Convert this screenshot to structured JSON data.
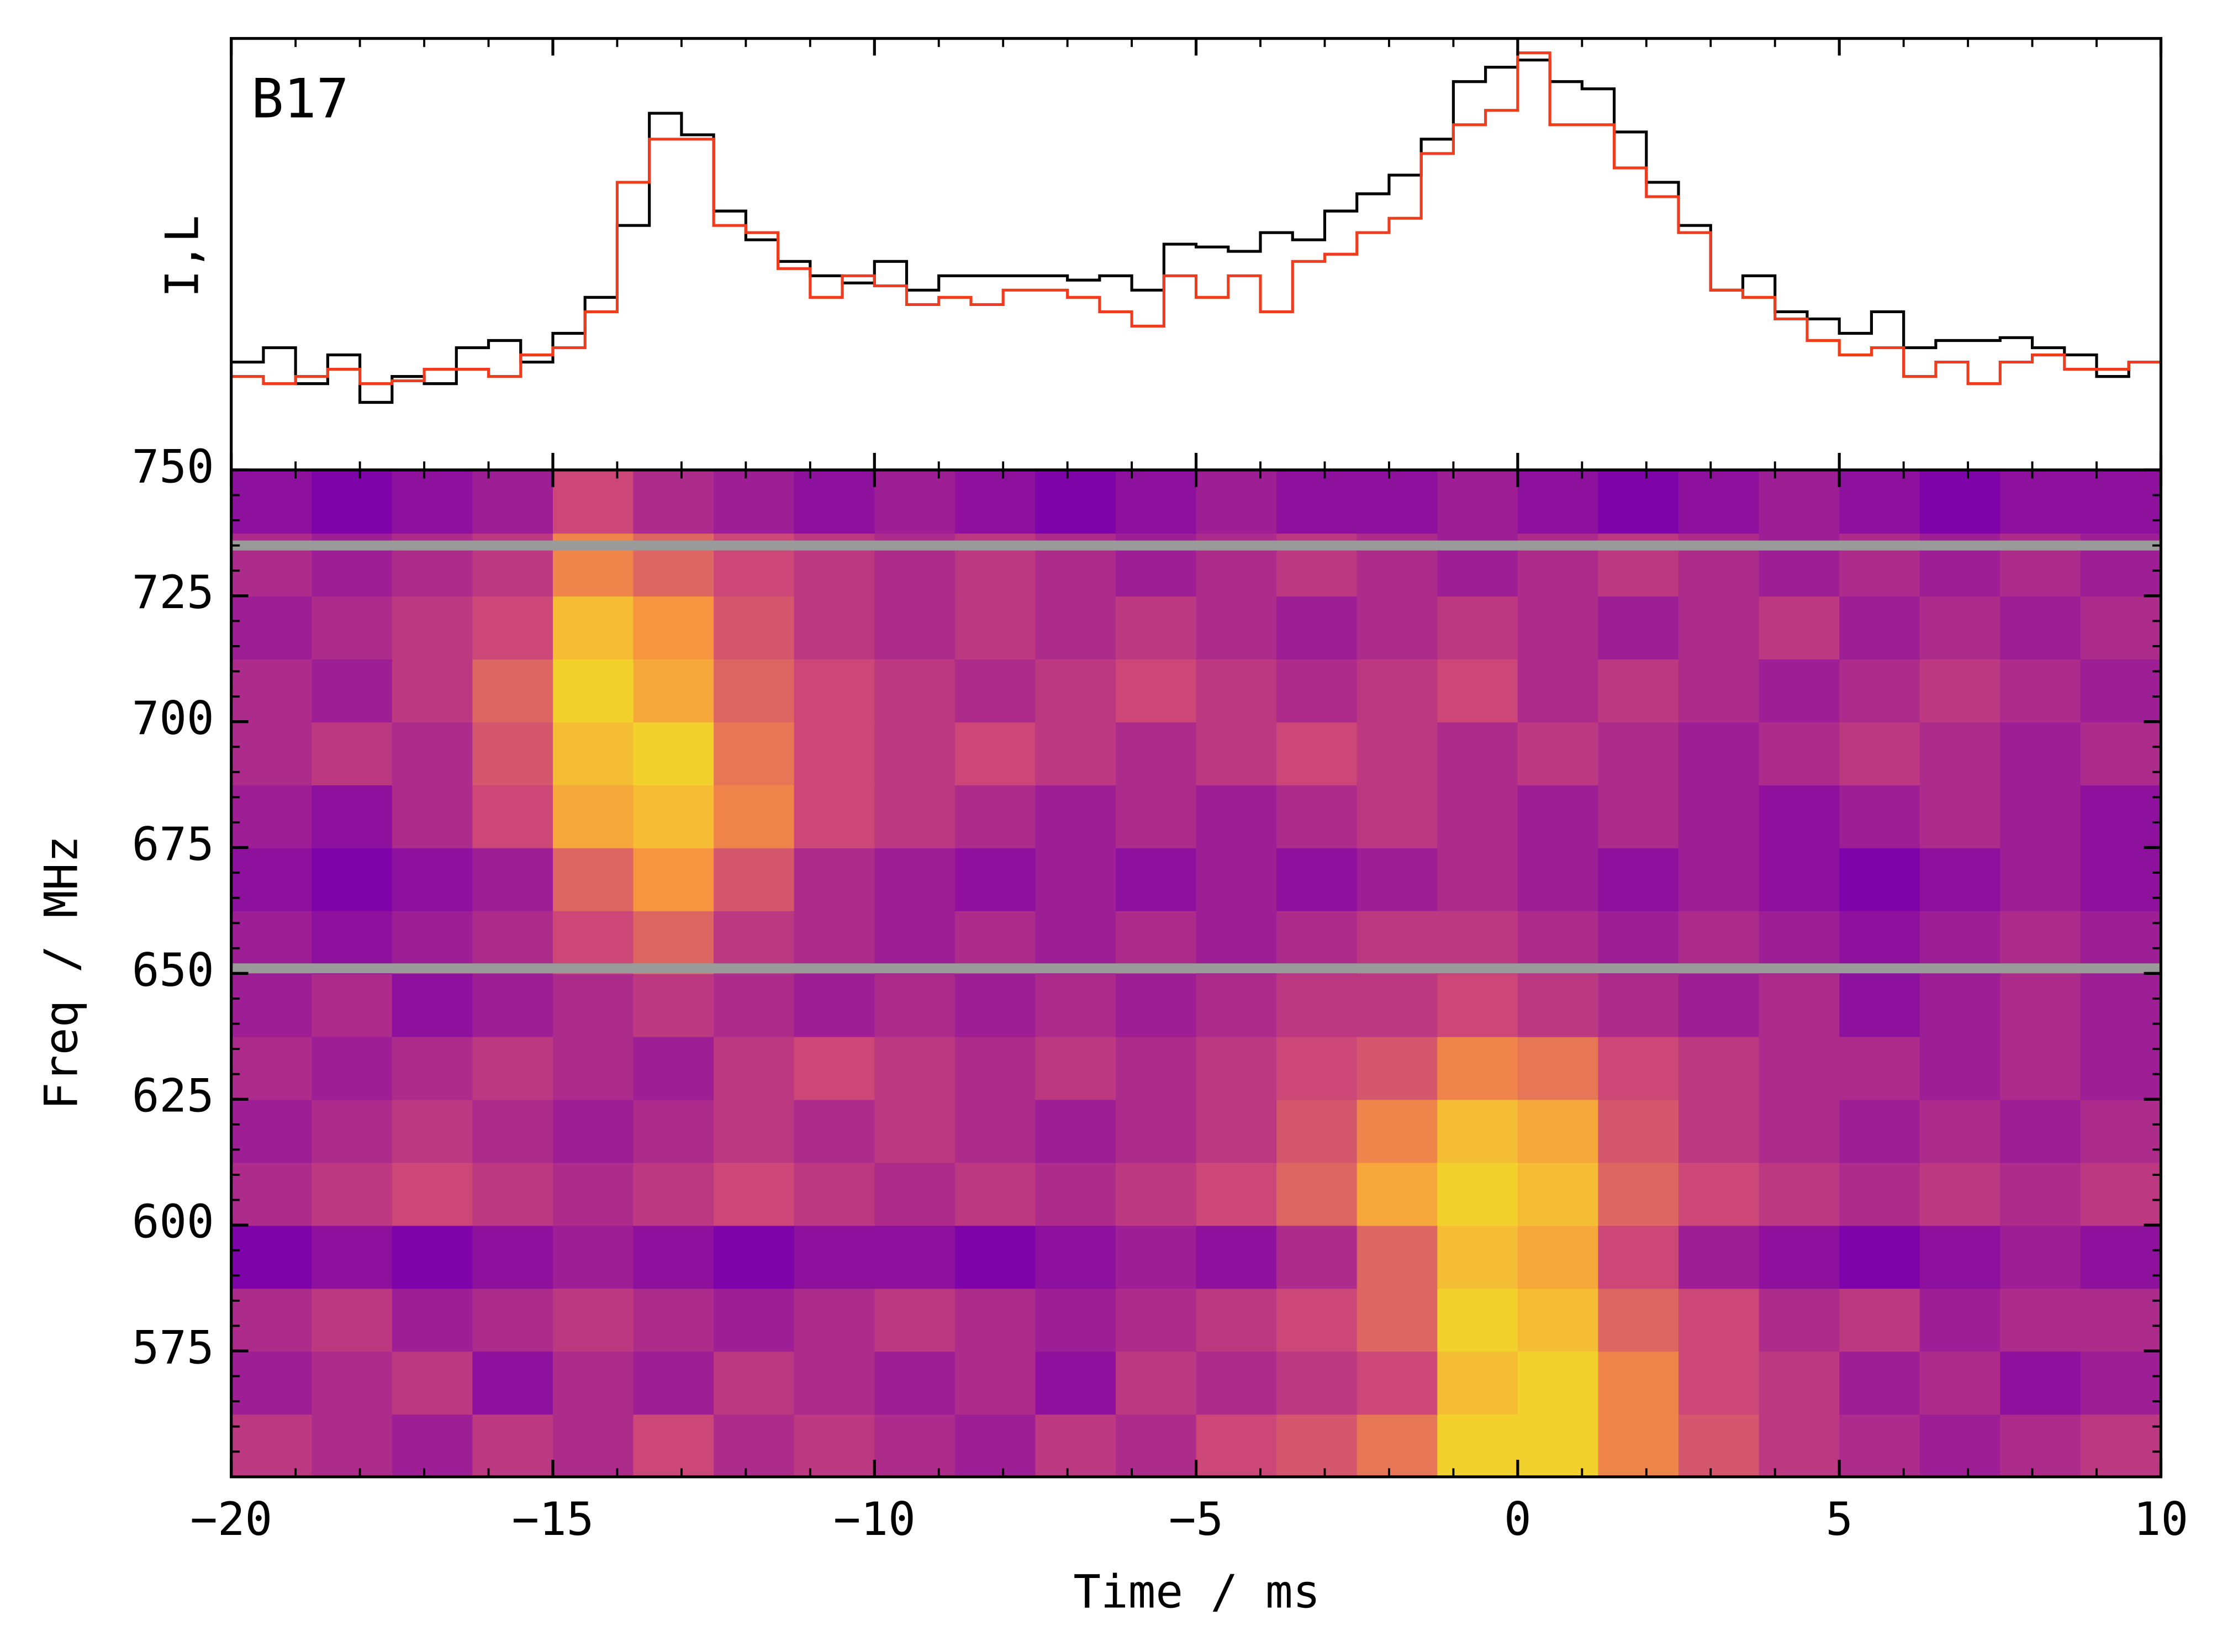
{
  "chart_data": [
    {
      "type": "step",
      "label": "B17",
      "ylabel": "I,L",
      "xlim": [
        -20,
        10
      ],
      "ylim": [
        0,
        300
      ],
      "xticks": [
        {
          "value": -20,
          "label": "−20"
        },
        {
          "value": -15,
          "label": "−15"
        },
        {
          "value": -10,
          "label": "−10"
        },
        {
          "value": -5,
          "label": "−5"
        },
        0,
        5,
        10
      ],
      "x": [
        -20,
        -19.5,
        -19,
        -18.5,
        -18,
        -17.5,
        -17,
        -16.5,
        -16,
        -15.5,
        -15,
        -14.5,
        -14,
        -13.5,
        -13,
        -12.5,
        -12,
        -11.5,
        -11,
        -10.5,
        -10,
        -9.5,
        -9,
        -8.5,
        -8,
        -7.5,
        -7,
        -6.5,
        -6,
        -5.5,
        -5,
        -4.5,
        -4,
        -3.5,
        -3,
        -2.5,
        -2,
        -1.5,
        -1,
        -0.5,
        0,
        0.5,
        1,
        1.5,
        2,
        2.5,
        3,
        3.5,
        4,
        4.5,
        5,
        5.5,
        6,
        6.5,
        7,
        7.5,
        8,
        8.5,
        9,
        9.5
      ],
      "series": [
        {
          "color": "#000000",
          "values": [
            75,
            85,
            60,
            80,
            47,
            65,
            60,
            85,
            90,
            75,
            95,
            120,
            170,
            248,
            233,
            180,
            160,
            145,
            135,
            130,
            145,
            125,
            135,
            135,
            135,
            135,
            132,
            135,
            125,
            157,
            155,
            152,
            165,
            160,
            180,
            192,
            205,
            230,
            270,
            280,
            285,
            270,
            265,
            235,
            200,
            170,
            125,
            135,
            110,
            105,
            95,
            110,
            85,
            90,
            90,
            92,
            85,
            80,
            65,
            75
          ]
        },
        {
          "color": "#f03c1e",
          "values": [
            65,
            60,
            65,
            70,
            60,
            62,
            70,
            70,
            65,
            80,
            85,
            110,
            200,
            230,
            230,
            170,
            165,
            140,
            120,
            135,
            128,
            115,
            120,
            115,
            125,
            125,
            120,
            110,
            100,
            135,
            120,
            135,
            110,
            145,
            150,
            165,
            175,
            220,
            240,
            250,
            290,
            240,
            240,
            210,
            190,
            165,
            125,
            120,
            105,
            90,
            80,
            85,
            65,
            75,
            60,
            75,
            80,
            70,
            70,
            75
          ]
        }
      ]
    },
    {
      "type": "heatmap",
      "xlabel": "Time / ms",
      "ylabel": "Freq / MHz",
      "xlim": [
        -20,
        10
      ],
      "ylim": [
        550,
        750
      ],
      "xticks": [
        {
          "value": -20,
          "label": "−20"
        },
        {
          "value": -15,
          "label": "−15"
        },
        {
          "value": -10,
          "label": "−10"
        },
        {
          "value": -5,
          "label": "−5"
        },
        0,
        5,
        10
      ],
      "yticks": [
        575,
        600,
        625,
        650,
        675,
        700,
        725,
        750
      ],
      "masked_freqs": [
        651,
        735
      ],
      "x_edges": [
        -20,
        -18.75,
        -17.5,
        -16.25,
        -15,
        -13.75,
        -12.5,
        -11.25,
        -10,
        -8.75,
        -7.5,
        -6.25,
        -5,
        -3.75,
        -2.5,
        -1.25,
        0,
        1.25,
        2.5,
        3.75,
        5,
        6.25,
        7.5,
        8.75,
        10
      ],
      "y_edges": [
        550,
        562.5,
        575,
        587.5,
        600,
        612.5,
        625,
        637.5,
        650,
        662.5,
        675,
        687.5,
        700,
        712.5,
        725,
        737.5,
        750
      ],
      "z": [
        [
          0.45,
          0.4,
          0.35,
          0.45,
          0.4,
          0.5,
          0.4,
          0.45,
          0.4,
          0.35,
          0.45,
          0.4,
          0.5,
          0.55,
          0.65,
          0.9,
          0.9,
          0.7,
          0.55,
          0.45,
          0.4,
          0.35,
          0.4,
          0.45
        ],
        [
          0.35,
          0.4,
          0.45,
          0.3,
          0.4,
          0.35,
          0.45,
          0.4,
          0.35,
          0.4,
          0.3,
          0.45,
          0.4,
          0.45,
          0.5,
          0.85,
          0.9,
          0.7,
          0.5,
          0.45,
          0.35,
          0.4,
          0.3,
          0.35
        ],
        [
          0.4,
          0.45,
          0.35,
          0.4,
          0.45,
          0.4,
          0.35,
          0.4,
          0.45,
          0.4,
          0.35,
          0.4,
          0.45,
          0.5,
          0.6,
          0.9,
          0.85,
          0.6,
          0.5,
          0.4,
          0.45,
          0.35,
          0.4,
          0.4
        ],
        [
          0.25,
          0.3,
          0.25,
          0.3,
          0.35,
          0.3,
          0.25,
          0.3,
          0.3,
          0.25,
          0.3,
          0.35,
          0.3,
          0.4,
          0.6,
          0.85,
          0.8,
          0.5,
          0.35,
          0.3,
          0.25,
          0.3,
          0.35,
          0.3
        ],
        [
          0.4,
          0.45,
          0.5,
          0.45,
          0.4,
          0.45,
          0.5,
          0.45,
          0.4,
          0.45,
          0.4,
          0.45,
          0.5,
          0.6,
          0.8,
          0.9,
          0.85,
          0.6,
          0.5,
          0.45,
          0.4,
          0.45,
          0.4,
          0.45
        ],
        [
          0.35,
          0.4,
          0.45,
          0.4,
          0.35,
          0.4,
          0.45,
          0.4,
          0.45,
          0.4,
          0.35,
          0.4,
          0.45,
          0.55,
          0.7,
          0.85,
          0.8,
          0.55,
          0.45,
          0.4,
          0.35,
          0.4,
          0.35,
          0.4
        ],
        [
          0.4,
          0.35,
          0.4,
          0.45,
          0.4,
          0.35,
          0.45,
          0.5,
          0.45,
          0.4,
          0.45,
          0.4,
          0.45,
          0.5,
          0.55,
          0.7,
          0.65,
          0.5,
          0.45,
          0.4,
          0.4,
          0.35,
          0.4,
          0.35
        ],
        [
          0.35,
          0.4,
          0.3,
          0.35,
          0.4,
          0.45,
          0.4,
          0.35,
          0.4,
          0.35,
          0.4,
          0.35,
          0.4,
          0.45,
          0.45,
          0.5,
          0.45,
          0.4,
          0.35,
          0.4,
          0.3,
          0.35,
          0.4,
          0.35
        ],
        [
          0.35,
          0.3,
          0.35,
          0.4,
          0.5,
          0.6,
          0.45,
          0.4,
          0.35,
          0.4,
          0.35,
          0.4,
          0.35,
          0.4,
          0.45,
          0.45,
          0.4,
          0.35,
          0.4,
          0.35,
          0.3,
          0.35,
          0.4,
          0.35
        ],
        [
          0.3,
          0.25,
          0.3,
          0.35,
          0.6,
          0.75,
          0.55,
          0.4,
          0.35,
          0.3,
          0.35,
          0.3,
          0.35,
          0.3,
          0.35,
          0.4,
          0.35,
          0.3,
          0.35,
          0.3,
          0.25,
          0.3,
          0.35,
          0.3
        ],
        [
          0.35,
          0.3,
          0.4,
          0.5,
          0.8,
          0.85,
          0.7,
          0.5,
          0.45,
          0.4,
          0.35,
          0.4,
          0.35,
          0.4,
          0.45,
          0.4,
          0.35,
          0.4,
          0.35,
          0.3,
          0.35,
          0.4,
          0.35,
          0.3
        ],
        [
          0.4,
          0.45,
          0.4,
          0.55,
          0.85,
          0.9,
          0.65,
          0.5,
          0.45,
          0.5,
          0.45,
          0.4,
          0.45,
          0.5,
          0.45,
          0.4,
          0.45,
          0.4,
          0.35,
          0.4,
          0.45,
          0.4,
          0.35,
          0.4
        ],
        [
          0.4,
          0.35,
          0.45,
          0.6,
          0.9,
          0.8,
          0.6,
          0.5,
          0.45,
          0.4,
          0.45,
          0.5,
          0.45,
          0.4,
          0.45,
          0.5,
          0.4,
          0.45,
          0.4,
          0.35,
          0.4,
          0.45,
          0.4,
          0.35
        ],
        [
          0.35,
          0.4,
          0.45,
          0.5,
          0.85,
          0.75,
          0.55,
          0.45,
          0.4,
          0.45,
          0.4,
          0.45,
          0.4,
          0.35,
          0.4,
          0.45,
          0.4,
          0.35,
          0.4,
          0.45,
          0.35,
          0.4,
          0.35,
          0.4
        ],
        [
          0.4,
          0.35,
          0.4,
          0.45,
          0.7,
          0.6,
          0.5,
          0.45,
          0.4,
          0.45,
          0.4,
          0.35,
          0.4,
          0.45,
          0.4,
          0.35,
          0.4,
          0.45,
          0.4,
          0.35,
          0.4,
          0.35,
          0.4,
          0.35
        ],
        [
          0.3,
          0.25,
          0.3,
          0.35,
          0.5,
          0.4,
          0.35,
          0.3,
          0.35,
          0.3,
          0.25,
          0.3,
          0.35,
          0.3,
          0.3,
          0.35,
          0.3,
          0.25,
          0.3,
          0.35,
          0.3,
          0.25,
          0.3,
          0.3
        ]
      ]
    }
  ]
}
